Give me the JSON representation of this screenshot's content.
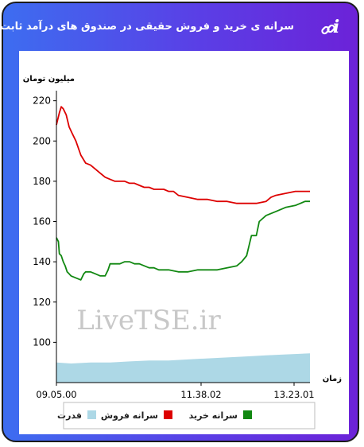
{
  "header": {
    "title": "سرانه ی خرید و فروش حقیقی در صندوق های درآمد ثابت",
    "info_label": "i"
  },
  "chart_data": {
    "type": "line",
    "ylabel": "میلیون تومان",
    "xlabel": "زمان",
    "watermark": "LiveTSE.ir",
    "yticks": [
      100,
      120,
      140,
      160,
      180,
      200,
      220
    ],
    "ylim": [
      80,
      225
    ],
    "xticks": [
      "09.05.00",
      "11.38.02",
      "13.23.01"
    ],
    "x_range": [
      "09:05",
      "13:25"
    ],
    "grid": false,
    "legend_position": "bottom",
    "series": [
      {
        "name": "سرانه فروش",
        "color": "#dd0000",
        "points": [
          [
            "09:05",
            208
          ],
          [
            "09:06",
            210
          ],
          [
            "09:08",
            214
          ],
          [
            "09:10",
            217
          ],
          [
            "09:12",
            216
          ],
          [
            "09:15",
            213
          ],
          [
            "09:18",
            207
          ],
          [
            "09:21",
            204
          ],
          [
            "09:25",
            200
          ],
          [
            "09:30",
            193
          ],
          [
            "09:35",
            189
          ],
          [
            "09:40",
            188
          ],
          [
            "09:45",
            186
          ],
          [
            "09:50",
            184
          ],
          [
            "09:55",
            182
          ],
          [
            "10:00",
            181
          ],
          [
            "10:05",
            180
          ],
          [
            "10:10",
            180
          ],
          [
            "10:15",
            180
          ],
          [
            "10:20",
            179
          ],
          [
            "10:25",
            179
          ],
          [
            "10:30",
            178
          ],
          [
            "10:35",
            177
          ],
          [
            "10:40",
            177
          ],
          [
            "10:45",
            176
          ],
          [
            "10:50",
            176
          ],
          [
            "10:55",
            176
          ],
          [
            "11:00",
            175
          ],
          [
            "11:05",
            175
          ],
          [
            "11:10",
            173
          ],
          [
            "11:20",
            172
          ],
          [
            "11:30",
            171
          ],
          [
            "11:40",
            171
          ],
          [
            "11:50",
            170
          ],
          [
            "12:00",
            170
          ],
          [
            "12:10",
            169
          ],
          [
            "12:20",
            169
          ],
          [
            "12:30",
            169
          ],
          [
            "12:40",
            170
          ],
          [
            "12:45",
            172
          ],
          [
            "12:50",
            173
          ],
          [
            "13:00",
            174
          ],
          [
            "13:10",
            175
          ],
          [
            "13:20",
            175
          ],
          [
            "13:25",
            175
          ]
        ]
      },
      {
        "name": "سرانه خرید",
        "color": "#118811",
        "points": [
          [
            "09:05",
            152
          ],
          [
            "09:07",
            150
          ],
          [
            "09:08",
            144
          ],
          [
            "09:10",
            143
          ],
          [
            "09:12",
            140
          ],
          [
            "09:14",
            138
          ],
          [
            "09:16",
            135
          ],
          [
            "09:18",
            134
          ],
          [
            "09:20",
            133
          ],
          [
            "09:25",
            132
          ],
          [
            "09:30",
            131
          ],
          [
            "09:33",
            134
          ],
          [
            "09:35",
            135
          ],
          [
            "09:40",
            135
          ],
          [
            "09:45",
            134
          ],
          [
            "09:50",
            133
          ],
          [
            "09:55",
            133
          ],
          [
            "09:58",
            136
          ],
          [
            "10:00",
            139
          ],
          [
            "10:05",
            139
          ],
          [
            "10:10",
            139
          ],
          [
            "10:15",
            140
          ],
          [
            "10:20",
            140
          ],
          [
            "10:25",
            139
          ],
          [
            "10:30",
            139
          ],
          [
            "10:35",
            138
          ],
          [
            "10:40",
            137
          ],
          [
            "10:45",
            137
          ],
          [
            "10:50",
            136
          ],
          [
            "11:00",
            136
          ],
          [
            "11:10",
            135
          ],
          [
            "11:20",
            135
          ],
          [
            "11:30",
            136
          ],
          [
            "11:40",
            136
          ],
          [
            "11:50",
            136
          ],
          [
            "12:00",
            137
          ],
          [
            "12:10",
            138
          ],
          [
            "12:15",
            140
          ],
          [
            "12:20",
            143
          ],
          [
            "12:25",
            153
          ],
          [
            "12:30",
            153
          ],
          [
            "12:33",
            160
          ],
          [
            "12:40",
            163
          ],
          [
            "12:50",
            165
          ],
          [
            "13:00",
            167
          ],
          [
            "13:10",
            168
          ],
          [
            "13:20",
            170
          ],
          [
            "13:25",
            170
          ]
        ]
      },
      {
        "name": "قدرت",
        "color": "#add8e6",
        "points": [
          [
            "09:05",
            90
          ],
          [
            "09:20",
            89.5
          ],
          [
            "09:40",
            90
          ],
          [
            "10:00",
            90
          ],
          [
            "10:20",
            90.5
          ],
          [
            "10:40",
            91
          ],
          [
            "11:00",
            91
          ],
          [
            "11:20",
            91.5
          ],
          [
            "11:40",
            92
          ],
          [
            "12:00",
            92.5
          ],
          [
            "12:20",
            93
          ],
          [
            "12:40",
            93.5
          ],
          [
            "13:00",
            94
          ],
          [
            "13:25",
            94.5
          ]
        ]
      }
    ]
  }
}
